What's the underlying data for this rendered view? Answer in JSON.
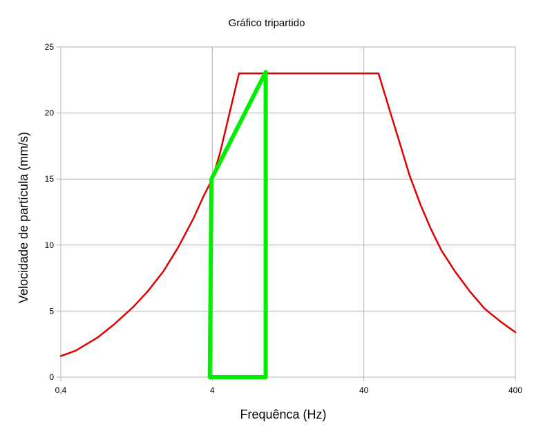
{
  "chart_data": {
    "type": "line",
    "title": "Gráfico tripartido",
    "xlabel": "Frequênca (Hz)",
    "ylabel": "Velocidade de partícula (mm/s)",
    "xscale": "log",
    "xlim": [
      0.4,
      400
    ],
    "ylim": [
      0,
      25
    ],
    "x_ticks": [
      0.4,
      4,
      40,
      400
    ],
    "x_tick_labels": [
      "0,4",
      "4",
      "40",
      "400"
    ],
    "y_ticks": [
      0,
      5,
      10,
      15,
      20,
      25
    ],
    "y_tick_labels": [
      "0",
      "5",
      "10",
      "15",
      "20",
      "25"
    ],
    "grid": true,
    "legend": "none",
    "series": [
      {
        "color": "#e00000",
        "line_width": "thin",
        "points": [
          [
            0.4,
            1.6
          ],
          [
            0.5,
            2.0
          ],
          [
            0.7,
            3.0
          ],
          [
            0.9,
            4.0
          ],
          [
            1.2,
            5.3
          ],
          [
            1.5,
            6.5
          ],
          [
            1.9,
            8.0
          ],
          [
            2.4,
            9.9
          ],
          [
            3.0,
            12.0
          ],
          [
            3.5,
            13.7
          ],
          [
            4.0,
            15.0
          ],
          [
            4.5,
            17.0
          ],
          [
            5.2,
            20.0
          ],
          [
            6.0,
            23.0
          ],
          [
            10.0,
            23.0
          ],
          [
            20.0,
            23.0
          ],
          [
            50.0,
            23.0
          ],
          [
            60.0,
            20.0
          ],
          [
            70.0,
            17.5
          ],
          [
            80.0,
            15.3
          ],
          [
            95.0,
            13.0
          ],
          [
            110.0,
            11.3
          ],
          [
            130.0,
            9.6
          ],
          [
            160.0,
            8.0
          ],
          [
            200.0,
            6.5
          ],
          [
            250.0,
            5.2
          ],
          [
            320.0,
            4.2
          ],
          [
            400.0,
            3.4
          ]
        ]
      },
      {
        "color": "#00ee00",
        "line_width": "thick",
        "points": [
          [
            3.85,
            0
          ],
          [
            3.95,
            15.0
          ],
          [
            9.0,
            23.1
          ],
          [
            9.0,
            0
          ],
          [
            3.85,
            0
          ]
        ]
      }
    ]
  }
}
